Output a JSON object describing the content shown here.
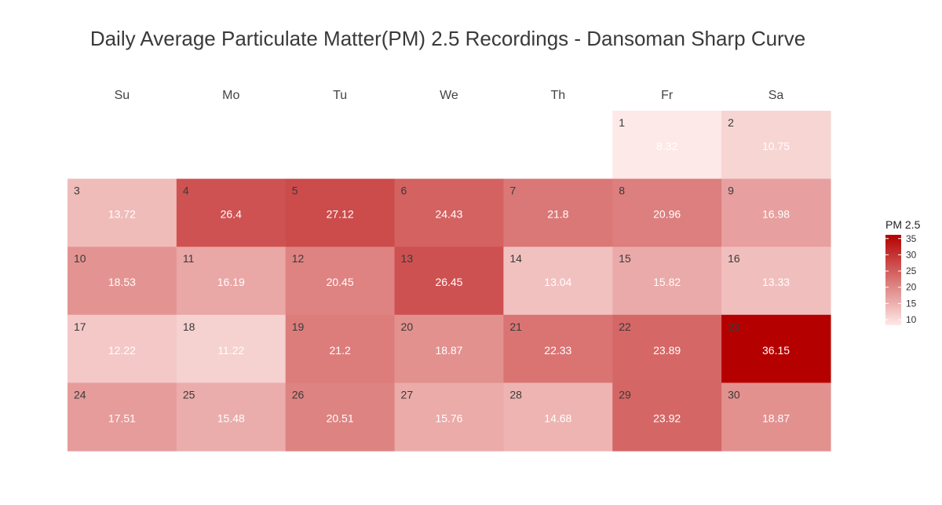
{
  "chart_data": {
    "type": "heatmap",
    "title": "Daily Average Particulate Matter(PM) 2.5 Recordings - Dansoman Sharp Curve",
    "weekdays": [
      "Su",
      "Mo",
      "Tu",
      "We",
      "Th",
      "Fr",
      "Sa"
    ],
    "first_weekday_index": 5,
    "days": [
      {
        "day": 1,
        "value": 8.32
      },
      {
        "day": 2,
        "value": 10.75
      },
      {
        "day": 3,
        "value": 13.72
      },
      {
        "day": 4,
        "value": 26.4
      },
      {
        "day": 5,
        "value": 27.12
      },
      {
        "day": 6,
        "value": 24.43
      },
      {
        "day": 7,
        "value": 21.8
      },
      {
        "day": 8,
        "value": 20.96
      },
      {
        "day": 9,
        "value": 16.98
      },
      {
        "day": 10,
        "value": 18.53
      },
      {
        "day": 11,
        "value": 16.19
      },
      {
        "day": 12,
        "value": 20.45
      },
      {
        "day": 13,
        "value": 26.45
      },
      {
        "day": 14,
        "value": 13.04
      },
      {
        "day": 15,
        "value": 15.82
      },
      {
        "day": 16,
        "value": 13.33
      },
      {
        "day": 17,
        "value": 12.22
      },
      {
        "day": 18,
        "value": 11.22
      },
      {
        "day": 19,
        "value": 21.2
      },
      {
        "day": 20,
        "value": 18.87
      },
      {
        "day": 21,
        "value": 22.33
      },
      {
        "day": 22,
        "value": 23.89
      },
      {
        "day": 23,
        "value": 36.15
      },
      {
        "day": 24,
        "value": 17.51
      },
      {
        "day": 25,
        "value": 15.48
      },
      {
        "day": 26,
        "value": 20.51
      },
      {
        "day": 27,
        "value": 15.76
      },
      {
        "day": 28,
        "value": 14.68
      },
      {
        "day": 29,
        "value": 23.92
      },
      {
        "day": 30,
        "value": 18.87
      }
    ],
    "legend": {
      "title": "PM 2.5",
      "ticks": [
        10,
        15,
        20,
        25,
        30,
        35
      ],
      "range": [
        8.32,
        36.15
      ],
      "color_low": "#fde9e7",
      "color_high": "#b50000"
    }
  }
}
